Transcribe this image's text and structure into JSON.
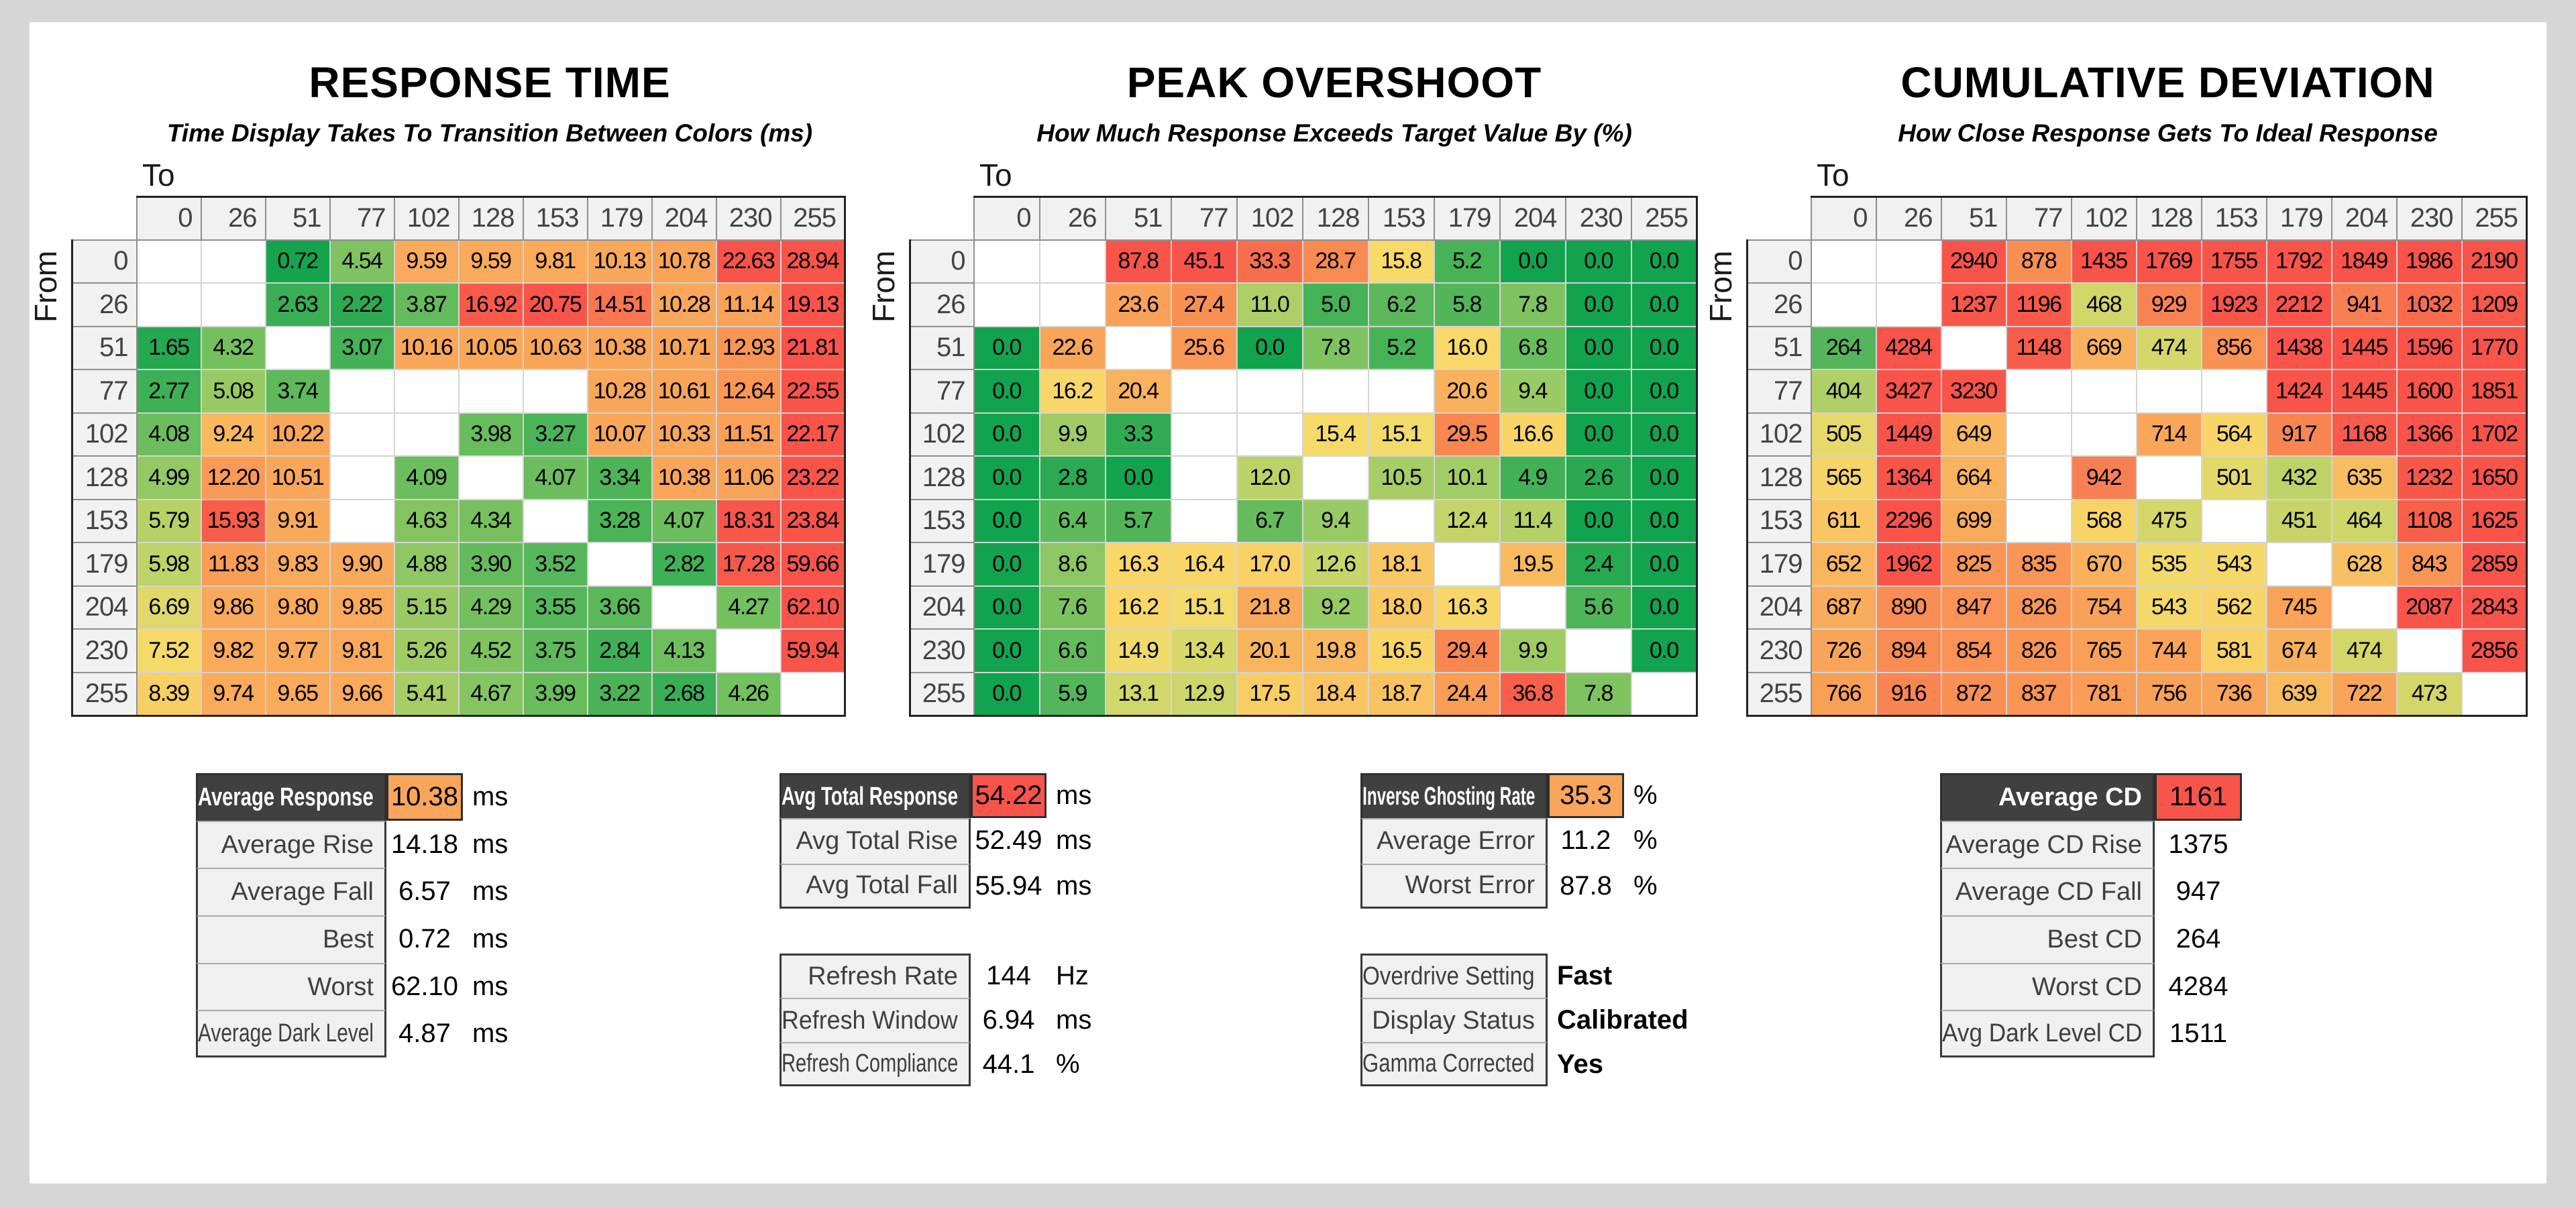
{
  "page": {
    "background": "#D6D6D6",
    "panel_bg": "#FFFFFF",
    "header_bg": "#404040",
    "label_bg": "#F0F0F0",
    "orange_accent": "#F9A55B",
    "red_accent": "#F8544A"
  },
  "gray_levels": [
    "0",
    "26",
    "51",
    "77",
    "102",
    "128",
    "153",
    "179",
    "204",
    "230",
    "255"
  ],
  "chart_data": [
    {
      "type": "heatmap",
      "title": "RESPONSE TIME",
      "subtitle": "Time Display Takes To Transition Between Colors (ms)",
      "unit": "ms",
      "axis_to_label": "To",
      "axis_from_label": "From",
      "categories": [
        "0",
        "26",
        "51",
        "77",
        "102",
        "128",
        "153",
        "179",
        "204",
        "230",
        "255"
      ],
      "rows": [
        [
          null,
          null,
          "0.72",
          "4.54",
          "9.59",
          "9.59",
          "9.81",
          "10.13",
          "10.78",
          "22.63",
          "28.94"
        ],
        [
          null,
          null,
          "2.63",
          "2.22",
          "3.87",
          "16.92",
          "20.75",
          "14.51",
          "10.28",
          "11.14",
          "19.13"
        ],
        [
          "1.65",
          "4.32",
          null,
          "3.07",
          "10.16",
          "10.05",
          "10.63",
          "10.38",
          "10.71",
          "12.93",
          "21.81"
        ],
        [
          "2.77",
          "5.08",
          "3.74",
          null,
          null,
          null,
          null,
          "10.28",
          "10.61",
          "12.64",
          "22.55"
        ],
        [
          "4.08",
          "9.24",
          "10.22",
          null,
          null,
          "3.98",
          "3.27",
          "10.07",
          "10.33",
          "11.51",
          "22.17"
        ],
        [
          "4.99",
          "12.20",
          "10.51",
          null,
          "4.09",
          null,
          "4.07",
          "3.34",
          "10.38",
          "11.06",
          "23.22"
        ],
        [
          "5.79",
          "15.93",
          "9.91",
          null,
          "4.63",
          "4.34",
          null,
          "3.28",
          "4.07",
          "18.31",
          "23.84"
        ],
        [
          "5.98",
          "11.83",
          "9.83",
          "9.90",
          "4.88",
          "3.90",
          "3.52",
          null,
          "2.82",
          "17.28",
          "59.66"
        ],
        [
          "6.69",
          "9.86",
          "9.80",
          "9.85",
          "5.15",
          "4.29",
          "3.55",
          "3.66",
          null,
          "4.27",
          "62.10"
        ],
        [
          "7.52",
          "9.82",
          "9.77",
          "9.81",
          "5.26",
          "4.52",
          "3.75",
          "2.84",
          "4.13",
          null,
          "59.94"
        ],
        [
          "8.39",
          "9.74",
          "9.65",
          "9.66",
          "5.41",
          "4.67",
          "3.99",
          "3.22",
          "2.68",
          "4.26",
          null
        ]
      ],
      "color_stops": [
        [
          0.5,
          "#12A34E"
        ],
        [
          2.2,
          "#2CAA51"
        ],
        [
          3.3,
          "#4CB458"
        ],
        [
          4.3,
          "#74C05E"
        ],
        [
          5.2,
          "#9DCB65"
        ],
        [
          6.0,
          "#C0D368"
        ],
        [
          6.8,
          "#E5D96B"
        ],
        [
          7.6,
          "#F7DA6A"
        ],
        [
          8.7,
          "#F9C963"
        ],
        [
          9.6,
          "#F9AB5B"
        ],
        [
          11.5,
          "#F9A058"
        ],
        [
          13.0,
          "#F99454"
        ],
        [
          14.5,
          "#F87650"
        ],
        [
          16.0,
          "#F85C4A"
        ],
        [
          19.0,
          "#F8544A"
        ]
      ]
    },
    {
      "type": "heatmap",
      "title": "PEAK OVERSHOOT",
      "subtitle": "How Much Response Exceeds Target Value By (%)",
      "unit": "%",
      "axis_to_label": "To",
      "axis_from_label": "From",
      "categories": [
        "0",
        "26",
        "51",
        "77",
        "102",
        "128",
        "153",
        "179",
        "204",
        "230",
        "255"
      ],
      "rows": [
        [
          null,
          null,
          "87.8",
          "45.1",
          "33.3",
          "28.7",
          "15.8",
          "5.2",
          "0.0",
          "0.0",
          "0.0"
        ],
        [
          null,
          null,
          "23.6",
          "27.4",
          "11.0",
          "5.0",
          "6.2",
          "5.8",
          "7.8",
          "0.0",
          "0.0"
        ],
        [
          "0.0",
          "22.6",
          null,
          "25.6",
          "0.0",
          "7.8",
          "5.2",
          "16.0",
          "6.8",
          "0.0",
          "0.0"
        ],
        [
          "0.0",
          "16.2",
          "20.4",
          null,
          null,
          null,
          null,
          "20.6",
          "9.4",
          "0.0",
          "0.0"
        ],
        [
          "0.0",
          "9.9",
          "3.3",
          null,
          null,
          "15.4",
          "15.1",
          "29.5",
          "16.6",
          "0.0",
          "0.0"
        ],
        [
          "0.0",
          "2.8",
          "0.0",
          null,
          "12.0",
          null,
          "10.5",
          "10.1",
          "4.9",
          "2.6",
          "0.0"
        ],
        [
          "0.0",
          "6.4",
          "5.7",
          null,
          "6.7",
          "9.4",
          null,
          "12.4",
          "11.4",
          "0.0",
          "0.0"
        ],
        [
          "0.0",
          "8.6",
          "16.3",
          "16.4",
          "17.0",
          "12.6",
          "18.1",
          null,
          "19.5",
          "2.4",
          "0.0"
        ],
        [
          "0.0",
          "7.6",
          "16.2",
          "15.1",
          "21.8",
          "9.2",
          "18.0",
          "16.3",
          null,
          "5.6",
          "0.0"
        ],
        [
          "0.0",
          "6.6",
          "14.9",
          "13.4",
          "20.1",
          "19.8",
          "16.5",
          "29.4",
          "9.9",
          null,
          "0.0"
        ],
        [
          "0.0",
          "5.9",
          "13.1",
          "12.9",
          "17.5",
          "18.4",
          "18.7",
          "24.4",
          "36.8",
          "7.8",
          null
        ]
      ],
      "color_stops": [
        [
          0,
          "#12A34E"
        ],
        [
          2.5,
          "#28A950"
        ],
        [
          4.5,
          "#3BAF54"
        ],
        [
          6,
          "#55B75A"
        ],
        [
          7.5,
          "#79C25F"
        ],
        [
          9,
          "#93C964"
        ],
        [
          10.5,
          "#A7CD66"
        ],
        [
          12,
          "#BCD268"
        ],
        [
          13.2,
          "#D3D76A"
        ],
        [
          14.5,
          "#EDDA6C"
        ],
        [
          15.8,
          "#F8DA69"
        ],
        [
          17,
          "#F9D166"
        ],
        [
          18.5,
          "#F9C462"
        ],
        [
          20,
          "#F9B55E"
        ],
        [
          22,
          "#F9A85A"
        ],
        [
          24.5,
          "#F99D57"
        ],
        [
          27,
          "#F99254"
        ],
        [
          29.5,
          "#F88750"
        ],
        [
          32,
          "#F8764E"
        ],
        [
          35,
          "#F8644B"
        ],
        [
          40,
          "#F8564A"
        ],
        [
          46,
          "#F8544A"
        ]
      ]
    },
    {
      "type": "heatmap",
      "title": "CUMULATIVE DEVIATION",
      "subtitle": "How Close Response Gets To Ideal Response",
      "unit": "",
      "axis_to_label": "To",
      "axis_from_label": "From",
      "categories": [
        "0",
        "26",
        "51",
        "77",
        "102",
        "128",
        "153",
        "179",
        "204",
        "230",
        "255"
      ],
      "rows": [
        [
          null,
          null,
          "2940",
          "878",
          "1435",
          "1769",
          "1755",
          "1792",
          "1849",
          "1986",
          "2190"
        ],
        [
          null,
          null,
          "1237",
          "1196",
          "468",
          "929",
          "1923",
          "2212",
          "941",
          "1032",
          "1209"
        ],
        [
          "264",
          "4284",
          null,
          "1148",
          "669",
          "474",
          "856",
          "1438",
          "1445",
          "1596",
          "1770"
        ],
        [
          "404",
          "3427",
          "3230",
          null,
          null,
          null,
          null,
          "1424",
          "1445",
          "1600",
          "1851"
        ],
        [
          "505",
          "1449",
          "649",
          null,
          null,
          "714",
          "564",
          "917",
          "1168",
          "1366",
          "1702"
        ],
        [
          "565",
          "1364",
          "664",
          null,
          "942",
          null,
          "501",
          "432",
          "635",
          "1232",
          "1650"
        ],
        [
          "611",
          "2296",
          "699",
          null,
          "568",
          "475",
          null,
          "451",
          "464",
          "1108",
          "1625"
        ],
        [
          "652",
          "1962",
          "825",
          "835",
          "670",
          "535",
          "543",
          null,
          "628",
          "843",
          "2859"
        ],
        [
          "687",
          "890",
          "847",
          "826",
          "754",
          "543",
          "562",
          "745",
          null,
          "2087",
          "2843"
        ],
        [
          "726",
          "894",
          "854",
          "826",
          "765",
          "744",
          "581",
          "674",
          "474",
          null,
          "2856"
        ],
        [
          "766",
          "916",
          "872",
          "837",
          "781",
          "756",
          "736",
          "639",
          "722",
          "473",
          null
        ]
      ],
      "color_stops": [
        [
          264,
          "#55B55C"
        ],
        [
          340,
          "#8BC662"
        ],
        [
          410,
          "#B4D067"
        ],
        [
          460,
          "#CCD569"
        ],
        [
          500,
          "#E3D96B"
        ],
        [
          540,
          "#F4DA6A"
        ],
        [
          580,
          "#F9D166"
        ],
        [
          620,
          "#F9C362"
        ],
        [
          660,
          "#F9B35E"
        ],
        [
          710,
          "#F9A75A"
        ],
        [
          770,
          "#F99F57"
        ],
        [
          840,
          "#F99455"
        ],
        [
          900,
          "#F98B52"
        ],
        [
          945,
          "#F87E52"
        ],
        [
          1010,
          "#F86E4E"
        ],
        [
          1120,
          "#F85D4B"
        ],
        [
          1300,
          "#F8544A"
        ]
      ]
    }
  ],
  "summary_tables": {
    "response": {
      "rows": [
        {
          "label": "Average Response",
          "value": "10.38",
          "unit": "ms",
          "header": true,
          "value_bg": "#F9A55B"
        },
        {
          "label": "Average Rise",
          "value": "14.18",
          "unit": "ms"
        },
        {
          "label": "Average Fall",
          "value": "6.57",
          "unit": "ms"
        },
        {
          "label": "Best",
          "value": "0.72",
          "unit": "ms"
        },
        {
          "label": "Worst",
          "value": "62.10",
          "unit": "ms"
        },
        {
          "label": "Average Dark Level",
          "value": "4.87",
          "unit": "ms"
        }
      ]
    },
    "totals": {
      "rows": [
        {
          "label": "Avg Total Response",
          "value": "54.22",
          "unit": "ms",
          "header": true,
          "value_bg": "#F8544A"
        },
        {
          "label": "Avg Total Rise",
          "value": "52.49",
          "unit": "ms"
        },
        {
          "label": "Avg Total Fall",
          "value": "55.94",
          "unit": "ms"
        }
      ]
    },
    "refresh": {
      "rows": [
        {
          "label": "Refresh Rate",
          "value": "144",
          "unit": "Hz"
        },
        {
          "label": "Refresh Window",
          "value": "6.94",
          "unit": "ms"
        },
        {
          "label": "Refresh Compliance",
          "value": "44.1",
          "unit": "%"
        }
      ]
    },
    "ghosting": {
      "rows": [
        {
          "label": "Inverse Ghosting Rate",
          "value": "35.3",
          "unit": "%",
          "header": true,
          "value_bg": "#F9A55B"
        },
        {
          "label": "Average Error",
          "value": "11.2",
          "unit": "%"
        },
        {
          "label": "Worst Error",
          "value": "87.8",
          "unit": "%"
        }
      ]
    },
    "settings": {
      "rows": [
        {
          "label": "Overdrive Setting",
          "value": "Fast",
          "unit": "",
          "text": true
        },
        {
          "label": "Display Status",
          "value": "Calibrated",
          "unit": "",
          "text": true
        },
        {
          "label": "Gamma Corrected",
          "value": "Yes",
          "unit": "",
          "text": true
        }
      ]
    },
    "cumulative_deviation": {
      "rows": [
        {
          "label": "Average CD",
          "value": "1161",
          "unit": "",
          "header": true,
          "value_bg": "#F8544A"
        },
        {
          "label": "Average CD Rise",
          "value": "1375",
          "unit": ""
        },
        {
          "label": "Average CD Fall",
          "value": "947",
          "unit": ""
        },
        {
          "label": "Best CD",
          "value": "264",
          "unit": ""
        },
        {
          "label": "Worst CD",
          "value": "4284",
          "unit": ""
        },
        {
          "label": "Avg Dark Level CD",
          "value": "1511",
          "unit": ""
        }
      ]
    }
  }
}
